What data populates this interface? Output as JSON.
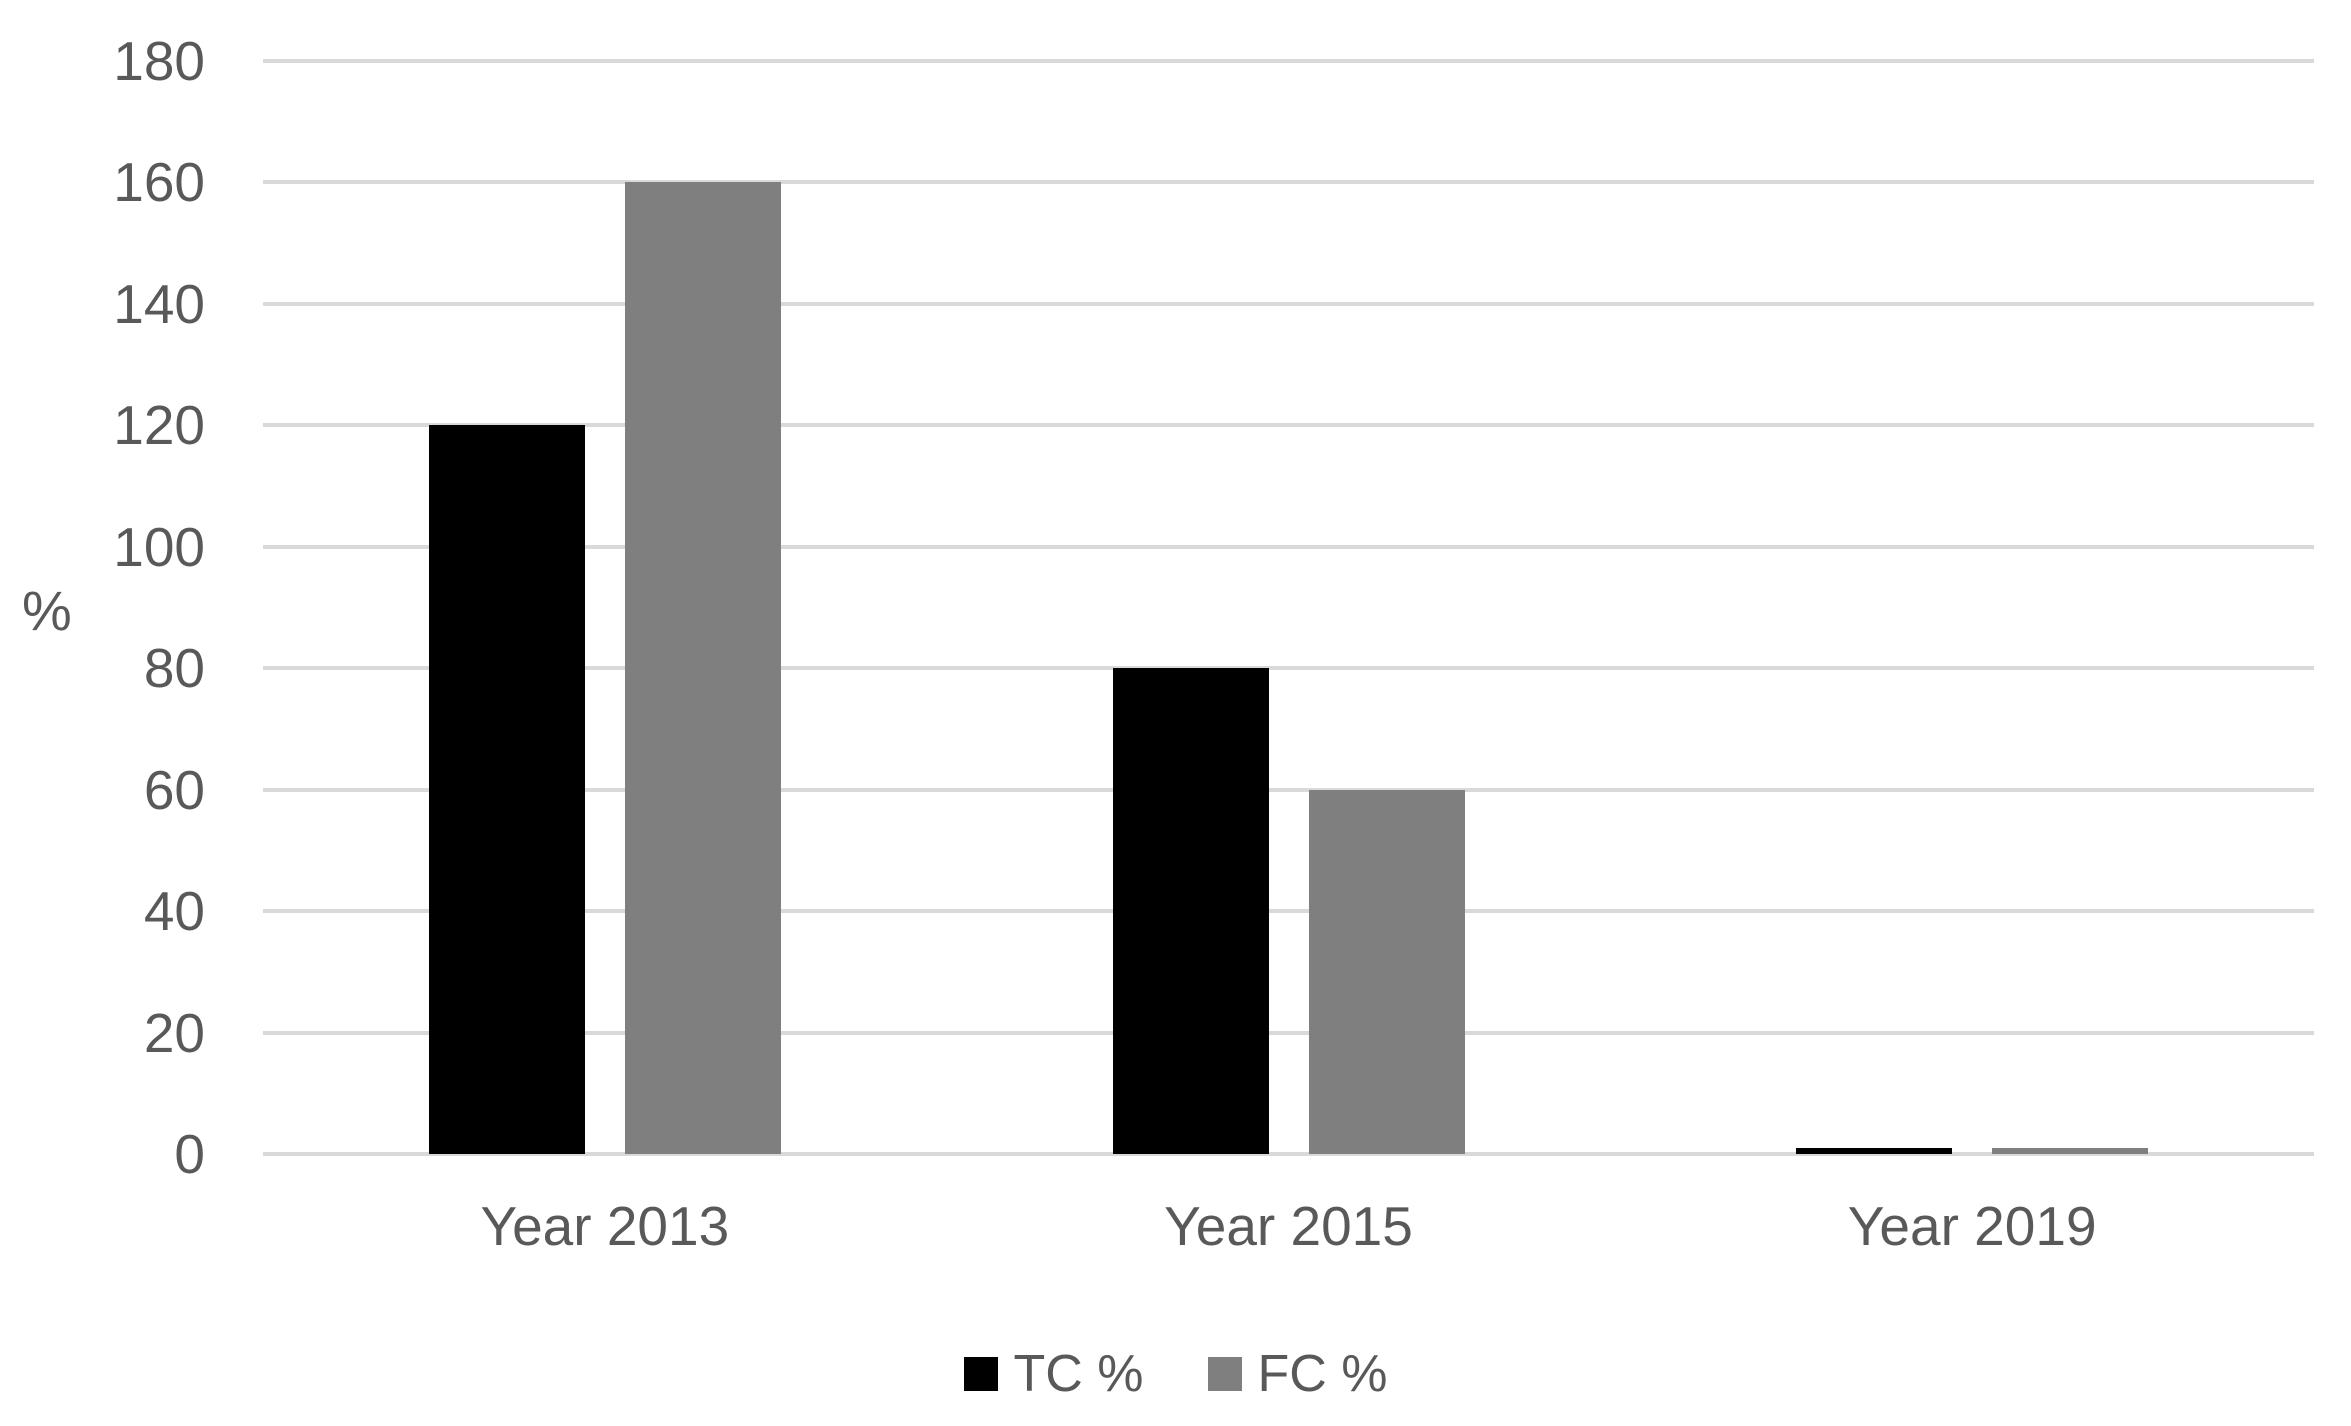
{
  "chart_data": {
    "type": "bar",
    "title": "",
    "xlabel": "",
    "ylabel": "%",
    "categories": [
      "Year 2013",
      "Year 2015",
      "Year 2019"
    ],
    "series": [
      {
        "name": "TC %",
        "color": "#000000",
        "values": [
          120,
          80,
          1
        ]
      },
      {
        "name": "FC %",
        "color": "#7f7f7f",
        "values": [
          160,
          60,
          1
        ]
      }
    ],
    "ylim": [
      0,
      180
    ],
    "ytick_step": 20,
    "yticks": [
      0,
      20,
      40,
      60,
      80,
      100,
      120,
      140,
      160,
      180
    ],
    "grid": true,
    "legend_position": "bottom"
  },
  "colors": {
    "background": "#ffffff",
    "gridline": "#d9d9d9",
    "tick_label": "#595959"
  }
}
